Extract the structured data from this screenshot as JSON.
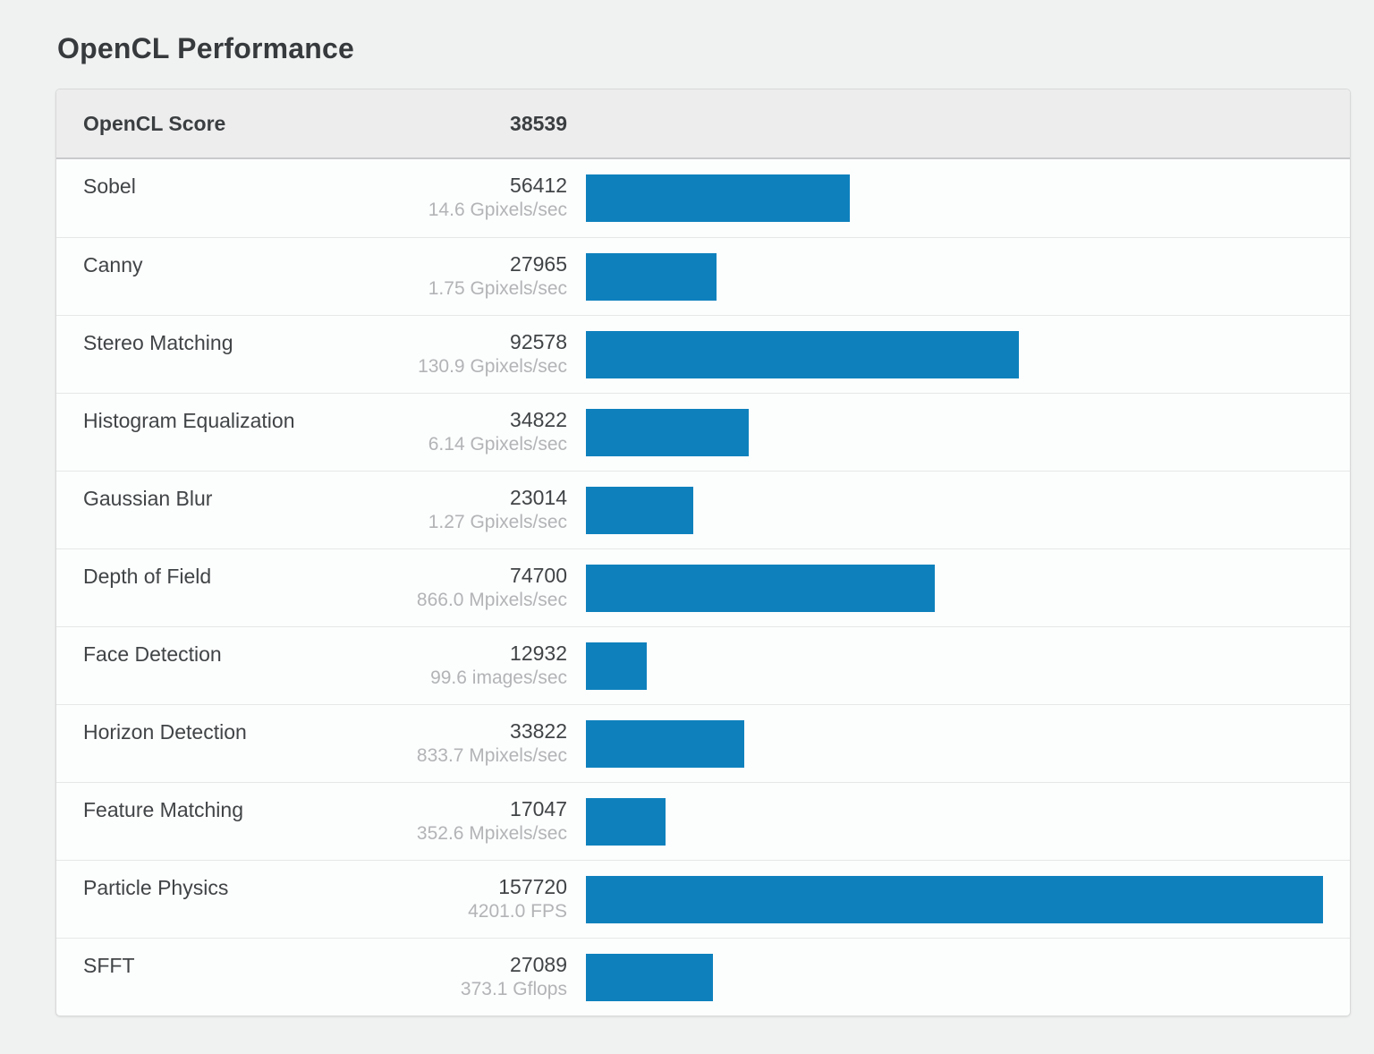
{
  "page": {
    "title": "OpenCL Performance"
  },
  "colors": {
    "bar": "#0e81bd",
    "header_bg": "#ededee",
    "card_bg": "#fcfdfd",
    "page_bg": "#f0f1f1"
  },
  "table": {
    "header": {
      "label": "OpenCL Score",
      "value": "38539"
    },
    "max_score": 157720,
    "rows": [
      {
        "label": "Sobel",
        "score": 56412,
        "rate": "14.6 Gpixels/sec"
      },
      {
        "label": "Canny",
        "score": 27965,
        "rate": "1.75 Gpixels/sec"
      },
      {
        "label": "Stereo Matching",
        "score": 92578,
        "rate": "130.9 Gpixels/sec"
      },
      {
        "label": "Histogram Equalization",
        "score": 34822,
        "rate": "6.14 Gpixels/sec"
      },
      {
        "label": "Gaussian Blur",
        "score": 23014,
        "rate": "1.27 Gpixels/sec"
      },
      {
        "label": "Depth of Field",
        "score": 74700,
        "rate": "866.0 Mpixels/sec"
      },
      {
        "label": "Face Detection",
        "score": 12932,
        "rate": "99.6 images/sec"
      },
      {
        "label": "Horizon Detection",
        "score": 33822,
        "rate": "833.7 Mpixels/sec"
      },
      {
        "label": "Feature Matching",
        "score": 17047,
        "rate": "352.6 Mpixels/sec"
      },
      {
        "label": "Particle Physics",
        "score": 157720,
        "rate": "4201.0 FPS"
      },
      {
        "label": "SFFT",
        "score": 27089,
        "rate": "373.1 Gflops"
      }
    ]
  },
  "chart_data": {
    "type": "bar",
    "orientation": "horizontal",
    "title": "OpenCL Performance",
    "overall_score_label": "OpenCL Score",
    "overall_score": 38539,
    "categories": [
      "Sobel",
      "Canny",
      "Stereo Matching",
      "Histogram Equalization",
      "Gaussian Blur",
      "Depth of Field",
      "Face Detection",
      "Horizon Detection",
      "Feature Matching",
      "Particle Physics",
      "SFFT"
    ],
    "values": [
      56412,
      27965,
      92578,
      34822,
      23014,
      74700,
      12932,
      33822,
      17047,
      157720,
      27089
    ],
    "rate_labels": [
      "14.6 Gpixels/sec",
      "1.75 Gpixels/sec",
      "130.9 Gpixels/sec",
      "6.14 Gpixels/sec",
      "1.27 Gpixels/sec",
      "866.0 Mpixels/sec",
      "99.6 images/sec",
      "833.7 Mpixels/sec",
      "352.6 Mpixels/sec",
      "4201.0 FPS",
      "373.1 Gflops"
    ],
    "xlim": [
      0,
      157720
    ],
    "grid": false,
    "legend": "none",
    "bar_color": "#0e81bd"
  }
}
